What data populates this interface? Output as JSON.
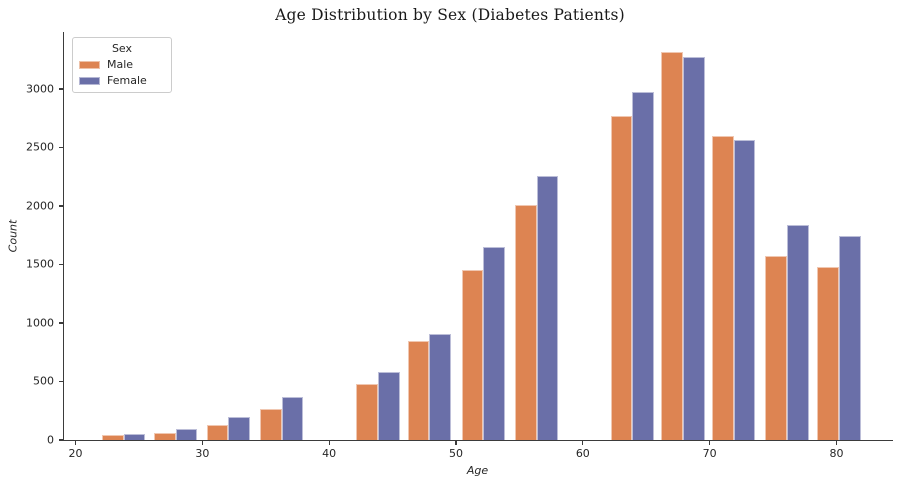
{
  "title": "Age Distribution by Sex (Diabetes Patients)",
  "legend": {
    "title": "Sex",
    "entries": [
      {
        "label": "Male",
        "color": "#dd8452"
      },
      {
        "label": "Female",
        "color": "#6a6fa8"
      }
    ]
  },
  "axes": {
    "x_label": "Age",
    "y_label": "Count",
    "x_ticks": [
      20,
      30,
      40,
      50,
      60,
      70,
      80
    ],
    "y_ticks": [
      0,
      500,
      1000,
      1500,
      2000,
      2500,
      3000
    ]
  },
  "chart_data": {
    "type": "bar",
    "title": "Age Distribution by Sex (Diabetes Patients)",
    "xlabel": "Age",
    "ylabel": "Count",
    "xlim": [
      19.1,
      84.5
    ],
    "ylim": [
      0,
      3480
    ],
    "grid": false,
    "legend_title": "Sex",
    "legend_position": "upper left",
    "bin_centers": [
      23.8,
      27.9,
      32.05,
      36.25,
      43.85,
      47.9,
      52.15,
      56.35,
      63.9,
      67.9,
      71.9,
      76.1,
      80.2
    ],
    "bar_width_years": 1.7,
    "series": [
      {
        "name": "Male",
        "color": "#dd8452",
        "values": [
          40,
          60,
          130,
          265,
          480,
          845,
          1455,
          2010,
          2770,
          3320,
          2600,
          1575,
          1480
        ]
      },
      {
        "name": "Female",
        "color": "#6a6fa8",
        "values": [
          50,
          95,
          195,
          370,
          580,
          905,
          1650,
          2260,
          2975,
          3270,
          2560,
          1835,
          1745
        ]
      }
    ]
  }
}
